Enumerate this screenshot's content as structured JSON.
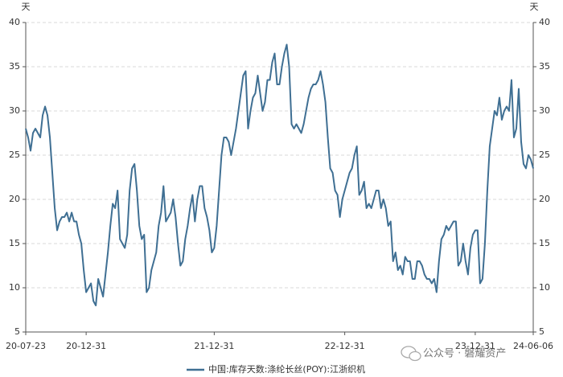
{
  "chart_data": {
    "type": "line",
    "y_label": "天",
    "y2_label": "天",
    "categories": [
      "20-07-23",
      null,
      null,
      null,
      null,
      null,
      null,
      null,
      null,
      null,
      null,
      null,
      null,
      null,
      null,
      null,
      null,
      null,
      null,
      null,
      null,
      null,
      null,
      null,
      null,
      "20-12-31",
      null,
      null,
      null,
      null,
      null,
      null,
      null,
      null,
      null,
      null,
      null,
      null,
      null,
      null,
      null,
      null,
      null,
      null,
      null,
      null,
      null,
      null,
      null,
      null,
      null,
      null,
      null,
      null,
      null,
      null,
      null,
      null,
      null,
      null,
      null,
      null,
      null,
      null,
      null,
      null,
      null,
      null,
      null,
      null,
      null,
      null,
      null,
      null,
      null,
      null,
      null,
      null,
      "21-12-31",
      null,
      null,
      null,
      null,
      null,
      null,
      null,
      null,
      null,
      null,
      null,
      null,
      null,
      null,
      null,
      null,
      null,
      null,
      null,
      null,
      null,
      null,
      null,
      null,
      null,
      null,
      null,
      null,
      null,
      null,
      null,
      null,
      null,
      null,
      null,
      null,
      null,
      null,
      null,
      null,
      null,
      null,
      null,
      null,
      null,
      null,
      null,
      null,
      null,
      null,
      null,
      null,
      null,
      "22-12-31",
      null,
      null,
      null,
      null,
      null,
      null,
      null,
      null,
      null,
      null,
      null,
      null,
      null,
      null,
      null,
      null,
      null,
      null,
      null,
      null,
      null,
      null,
      null,
      null,
      null,
      null,
      null,
      null,
      null,
      null,
      null,
      null,
      null,
      null,
      null,
      null,
      null,
      null,
      null,
      null,
      null,
      null,
      null,
      null,
      null,
      null,
      null,
      null,
      null,
      null,
      null,
      null,
      null,
      "23-12-31",
      null,
      null,
      null,
      null,
      null,
      null,
      null,
      null,
      null,
      null,
      null,
      null,
      null,
      null,
      null,
      null,
      null,
      null,
      null,
      null,
      null,
      null,
      null,
      "24-06-06"
    ],
    "series": [
      {
        "name": "中国:库存天数:涤纶长丝(POY):江浙织机",
        "color": "#3f6f93",
        "values": [
          28,
          27,
          25.5,
          27.5,
          28,
          27.5,
          27,
          29.5,
          30.5,
          29.5,
          27,
          23,
          19,
          16.5,
          17.5,
          18,
          18,
          18.5,
          17.5,
          18.5,
          17.5,
          17.5,
          16,
          15,
          12,
          9.5,
          10,
          10.5,
          8.5,
          8,
          11,
          10,
          9,
          11.5,
          14,
          17,
          19.5,
          19,
          21,
          15.5,
          15,
          14.5,
          16,
          21,
          23.5,
          24,
          21,
          17,
          15.5,
          16,
          9.5,
          10,
          12,
          13,
          14,
          17,
          18.5,
          21.5,
          17.5,
          18,
          18.5,
          20,
          18,
          15,
          12.5,
          13,
          15.5,
          17,
          19,
          20.5,
          17.5,
          20,
          21.5,
          21.5,
          19,
          18,
          16.5,
          14,
          14.5,
          17,
          21,
          25,
          27,
          27,
          26.5,
          25,
          26.5,
          28,
          30,
          32,
          34,
          34.5,
          28,
          30,
          31.5,
          32,
          34,
          32,
          30,
          31,
          33.5,
          33.5,
          35.5,
          36.5,
          33,
          33,
          35,
          36.5,
          37.5,
          35,
          28.5,
          28,
          28.5,
          28,
          27.5,
          28.5,
          30,
          31.5,
          32.5,
          33,
          33,
          33.5,
          34.5,
          33,
          31,
          27,
          23.5,
          23,
          21,
          20.5,
          18,
          20,
          21,
          22,
          23,
          23.5,
          25,
          26,
          20.5,
          21,
          22,
          19,
          19.5,
          19,
          20,
          21,
          21,
          19,
          20,
          19,
          17,
          17.5,
          13,
          14,
          12,
          12.5,
          11.5,
          13.5,
          13,
          13,
          11,
          11,
          13,
          13,
          12.5,
          11.5,
          11,
          11,
          10.5,
          11,
          9.5,
          13,
          15.5,
          16,
          17,
          16.5,
          17,
          17.5,
          17.5,
          12.5,
          13,
          15,
          13,
          11.5,
          14.5,
          16,
          16.5,
          16.5,
          10.5,
          11,
          15,
          21,
          26,
          28,
          30,
          29.5,
          31.5,
          29,
          30,
          30.5,
          30,
          33.5,
          27,
          28,
          32.5,
          26.5,
          24,
          23.5,
          25,
          24.5,
          23.5
        ]
      }
    ],
    "ylim": [
      5,
      40
    ],
    "yticks": [
      5,
      10,
      15,
      20,
      25,
      30,
      35,
      40
    ],
    "y2lim": [
      5,
      40
    ],
    "y2ticks": [
      5,
      10,
      15,
      20,
      25,
      30,
      35,
      40
    ],
    "grid": true,
    "legend": "bottom",
    "watermark": "公众号 · 磐耀资产"
  }
}
